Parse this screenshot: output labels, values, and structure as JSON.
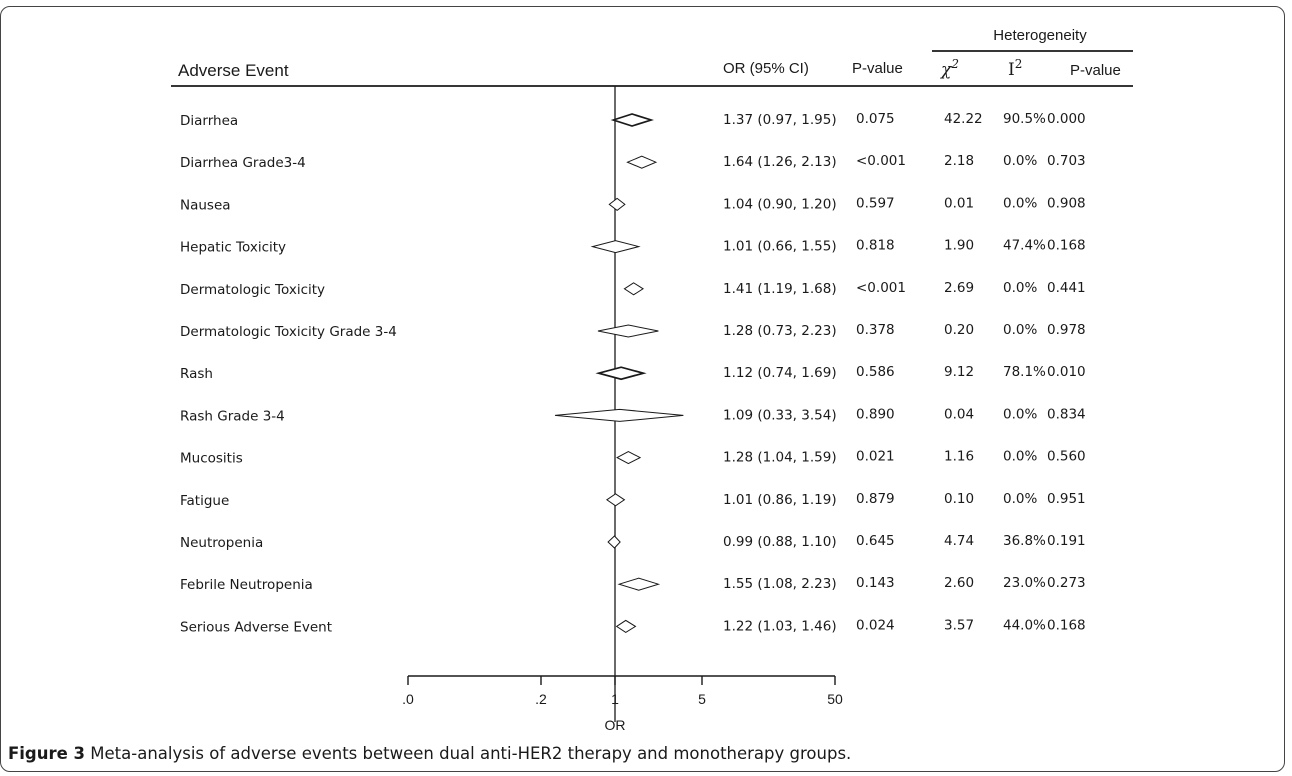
{
  "caption": {
    "label": "Figure 3",
    "text": " Meta-analysis of adverse events between dual anti-HER2 therapy and monotherapy groups."
  },
  "header": {
    "adverse_event": "Adverse Event",
    "or_ci": "OR (95% CI)",
    "p_value": "P-value",
    "heterogeneity": "Heterogeneity",
    "chi_sq": "χ",
    "chi_sq_exp": "2",
    "i_sq": "I",
    "i_sq_exp": "2",
    "het_p_value": "P-value"
  },
  "chart_data": {
    "type": "forest",
    "xlabel": "OR",
    "x_ticks": [
      ".0",
      ".2",
      "1",
      "5",
      "50"
    ],
    "reference_line": 1,
    "rows": [
      {
        "event": "Diarrhea",
        "or": 1.37,
        "lo": 0.97,
        "hi": 1.95,
        "or_ci": "1.37 (0.97, 1.95)",
        "p": "0.075",
        "chi2": "42.22",
        "i2": "90.5%",
        "het_p": "0.000",
        "bold": true
      },
      {
        "event": "Diarrhea Grade3-4",
        "or": 1.64,
        "lo": 1.26,
        "hi": 2.13,
        "or_ci": "1.64 (1.26, 2.13)",
        "p": "<0.001",
        "chi2": "2.18",
        "i2": "0.0%",
        "het_p": "0.703",
        "bold": false
      },
      {
        "event": "Nausea",
        "or": 1.04,
        "lo": 0.9,
        "hi": 1.2,
        "or_ci": "1.04 (0.90, 1.20)",
        "p": "0.597",
        "chi2": "0.01",
        "i2": "0.0%",
        "het_p": "0.908",
        "bold": false
      },
      {
        "event": "Hepatic  Toxicity",
        "or": 1.01,
        "lo": 0.66,
        "hi": 1.55,
        "or_ci": "1.01 (0.66, 1.55)",
        "p": "0.818",
        "chi2": "1.90",
        "i2": "47.4%",
        "het_p": "0.168",
        "bold": false
      },
      {
        "event": "Dermatologic  Toxicity",
        "or": 1.41,
        "lo": 1.19,
        "hi": 1.68,
        "or_ci": "1.41 (1.19, 1.68)",
        "p": "<0.001",
        "chi2": "2.69",
        "i2": "0.0%",
        "het_p": "0.441",
        "bold": false
      },
      {
        "event": "Dermatologic Toxicity Grade 3-4",
        "or": 1.28,
        "lo": 0.73,
        "hi": 2.23,
        "or_ci": "1.28 (0.73, 2.23)",
        "p": "0.378",
        "chi2": "0.20",
        "i2": "0.0%",
        "het_p": "0.978",
        "bold": false
      },
      {
        "event": "Rash",
        "or": 1.12,
        "lo": 0.74,
        "hi": 1.69,
        "or_ci": "1.12 (0.74, 1.69)",
        "p": "0.586",
        "chi2": "9.12",
        "i2": "78.1%",
        "het_p": "0.010",
        "bold": true
      },
      {
        "event": "Rash Grade 3-4",
        "or": 1.09,
        "lo": 0.33,
        "hi": 3.54,
        "or_ci": "1.09 (0.33, 3.54)",
        "p": "0.890",
        "chi2": "0.04",
        "i2": "0.0%",
        "het_p": "0.834",
        "bold": false
      },
      {
        "event": "Mucositis",
        "or": 1.28,
        "lo": 1.04,
        "hi": 1.59,
        "or_ci": "1.28 (1.04, 1.59)",
        "p": "0.021",
        "chi2": "1.16",
        "i2": "0.0%",
        "het_p": "0.560",
        "bold": false
      },
      {
        "event": "Fatigue",
        "or": 1.01,
        "lo": 0.86,
        "hi": 1.19,
        "or_ci": "1.01 (0.86, 1.19)",
        "p": "0.879",
        "chi2": "0.10",
        "i2": "0.0%",
        "het_p": "0.951",
        "bold": false
      },
      {
        "event": "Neutropenia",
        "or": 0.99,
        "lo": 0.88,
        "hi": 1.1,
        "or_ci": "0.99 (0.88, 1.10)",
        "p": "0.645",
        "chi2": "4.74",
        "i2": "36.8%",
        "het_p": "0.191",
        "bold": false
      },
      {
        "event": "Febrile Neutropenia",
        "or": 1.55,
        "lo": 1.08,
        "hi": 2.23,
        "or_ci": "1.55 (1.08, 2.23)",
        "p": "0.143",
        "chi2": "2.60",
        "i2": "23.0%",
        "het_p": "0.273",
        "bold": false
      },
      {
        "event": "Serious Adverse Event",
        "or": 1.22,
        "lo": 1.03,
        "hi": 1.46,
        "or_ci": "1.22 (1.03, 1.46)",
        "p": "0.024",
        "chi2": "3.57",
        "i2": "44.0%",
        "het_p": "0.168",
        "bold": false
      }
    ]
  }
}
